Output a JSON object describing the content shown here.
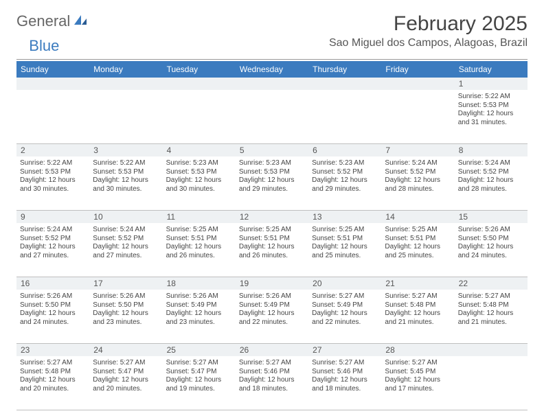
{
  "logo": {
    "general": "General",
    "blue": "Blue"
  },
  "title": "February 2025",
  "location": "Sao Miguel dos Campos, Alagoas, Brazil",
  "colors": {
    "header_bg": "#3b7bbf",
    "header_text": "#ffffff",
    "daynum_bg": "#eef1f3",
    "border": "#bfbfbf",
    "text": "#444444"
  },
  "day_headers": [
    "Sunday",
    "Monday",
    "Tuesday",
    "Wednesday",
    "Thursday",
    "Friday",
    "Saturday"
  ],
  "weeks": [
    {
      "nums": [
        "",
        "",
        "",
        "",
        "",
        "",
        "1"
      ],
      "cells": [
        null,
        null,
        null,
        null,
        null,
        null,
        {
          "sunrise": "Sunrise: 5:22 AM",
          "sunset": "Sunset: 5:53 PM",
          "day1": "Daylight: 12 hours",
          "day2": "and 31 minutes."
        }
      ]
    },
    {
      "nums": [
        "2",
        "3",
        "4",
        "5",
        "6",
        "7",
        "8"
      ],
      "cells": [
        {
          "sunrise": "Sunrise: 5:22 AM",
          "sunset": "Sunset: 5:53 PM",
          "day1": "Daylight: 12 hours",
          "day2": "and 30 minutes."
        },
        {
          "sunrise": "Sunrise: 5:22 AM",
          "sunset": "Sunset: 5:53 PM",
          "day1": "Daylight: 12 hours",
          "day2": "and 30 minutes."
        },
        {
          "sunrise": "Sunrise: 5:23 AM",
          "sunset": "Sunset: 5:53 PM",
          "day1": "Daylight: 12 hours",
          "day2": "and 30 minutes."
        },
        {
          "sunrise": "Sunrise: 5:23 AM",
          "sunset": "Sunset: 5:53 PM",
          "day1": "Daylight: 12 hours",
          "day2": "and 29 minutes."
        },
        {
          "sunrise": "Sunrise: 5:23 AM",
          "sunset": "Sunset: 5:52 PM",
          "day1": "Daylight: 12 hours",
          "day2": "and 29 minutes."
        },
        {
          "sunrise": "Sunrise: 5:24 AM",
          "sunset": "Sunset: 5:52 PM",
          "day1": "Daylight: 12 hours",
          "day2": "and 28 minutes."
        },
        {
          "sunrise": "Sunrise: 5:24 AM",
          "sunset": "Sunset: 5:52 PM",
          "day1": "Daylight: 12 hours",
          "day2": "and 28 minutes."
        }
      ]
    },
    {
      "nums": [
        "9",
        "10",
        "11",
        "12",
        "13",
        "14",
        "15"
      ],
      "cells": [
        {
          "sunrise": "Sunrise: 5:24 AM",
          "sunset": "Sunset: 5:52 PM",
          "day1": "Daylight: 12 hours",
          "day2": "and 27 minutes."
        },
        {
          "sunrise": "Sunrise: 5:24 AM",
          "sunset": "Sunset: 5:52 PM",
          "day1": "Daylight: 12 hours",
          "day2": "and 27 minutes."
        },
        {
          "sunrise": "Sunrise: 5:25 AM",
          "sunset": "Sunset: 5:51 PM",
          "day1": "Daylight: 12 hours",
          "day2": "and 26 minutes."
        },
        {
          "sunrise": "Sunrise: 5:25 AM",
          "sunset": "Sunset: 5:51 PM",
          "day1": "Daylight: 12 hours",
          "day2": "and 26 minutes."
        },
        {
          "sunrise": "Sunrise: 5:25 AM",
          "sunset": "Sunset: 5:51 PM",
          "day1": "Daylight: 12 hours",
          "day2": "and 25 minutes."
        },
        {
          "sunrise": "Sunrise: 5:25 AM",
          "sunset": "Sunset: 5:51 PM",
          "day1": "Daylight: 12 hours",
          "day2": "and 25 minutes."
        },
        {
          "sunrise": "Sunrise: 5:26 AM",
          "sunset": "Sunset: 5:50 PM",
          "day1": "Daylight: 12 hours",
          "day2": "and 24 minutes."
        }
      ]
    },
    {
      "nums": [
        "16",
        "17",
        "18",
        "19",
        "20",
        "21",
        "22"
      ],
      "cells": [
        {
          "sunrise": "Sunrise: 5:26 AM",
          "sunset": "Sunset: 5:50 PM",
          "day1": "Daylight: 12 hours",
          "day2": "and 24 minutes."
        },
        {
          "sunrise": "Sunrise: 5:26 AM",
          "sunset": "Sunset: 5:50 PM",
          "day1": "Daylight: 12 hours",
          "day2": "and 23 minutes."
        },
        {
          "sunrise": "Sunrise: 5:26 AM",
          "sunset": "Sunset: 5:49 PM",
          "day1": "Daylight: 12 hours",
          "day2": "and 23 minutes."
        },
        {
          "sunrise": "Sunrise: 5:26 AM",
          "sunset": "Sunset: 5:49 PM",
          "day1": "Daylight: 12 hours",
          "day2": "and 22 minutes."
        },
        {
          "sunrise": "Sunrise: 5:27 AM",
          "sunset": "Sunset: 5:49 PM",
          "day1": "Daylight: 12 hours",
          "day2": "and 22 minutes."
        },
        {
          "sunrise": "Sunrise: 5:27 AM",
          "sunset": "Sunset: 5:48 PM",
          "day1": "Daylight: 12 hours",
          "day2": "and 21 minutes."
        },
        {
          "sunrise": "Sunrise: 5:27 AM",
          "sunset": "Sunset: 5:48 PM",
          "day1": "Daylight: 12 hours",
          "day2": "and 21 minutes."
        }
      ]
    },
    {
      "nums": [
        "23",
        "24",
        "25",
        "26",
        "27",
        "28",
        ""
      ],
      "cells": [
        {
          "sunrise": "Sunrise: 5:27 AM",
          "sunset": "Sunset: 5:48 PM",
          "day1": "Daylight: 12 hours",
          "day2": "and 20 minutes."
        },
        {
          "sunrise": "Sunrise: 5:27 AM",
          "sunset": "Sunset: 5:47 PM",
          "day1": "Daylight: 12 hours",
          "day2": "and 20 minutes."
        },
        {
          "sunrise": "Sunrise: 5:27 AM",
          "sunset": "Sunset: 5:47 PM",
          "day1": "Daylight: 12 hours",
          "day2": "and 19 minutes."
        },
        {
          "sunrise": "Sunrise: 5:27 AM",
          "sunset": "Sunset: 5:46 PM",
          "day1": "Daylight: 12 hours",
          "day2": "and 18 minutes."
        },
        {
          "sunrise": "Sunrise: 5:27 AM",
          "sunset": "Sunset: 5:46 PM",
          "day1": "Daylight: 12 hours",
          "day2": "and 18 minutes."
        },
        {
          "sunrise": "Sunrise: 5:27 AM",
          "sunset": "Sunset: 5:45 PM",
          "day1": "Daylight: 12 hours",
          "day2": "and 17 minutes."
        },
        null
      ]
    }
  ]
}
